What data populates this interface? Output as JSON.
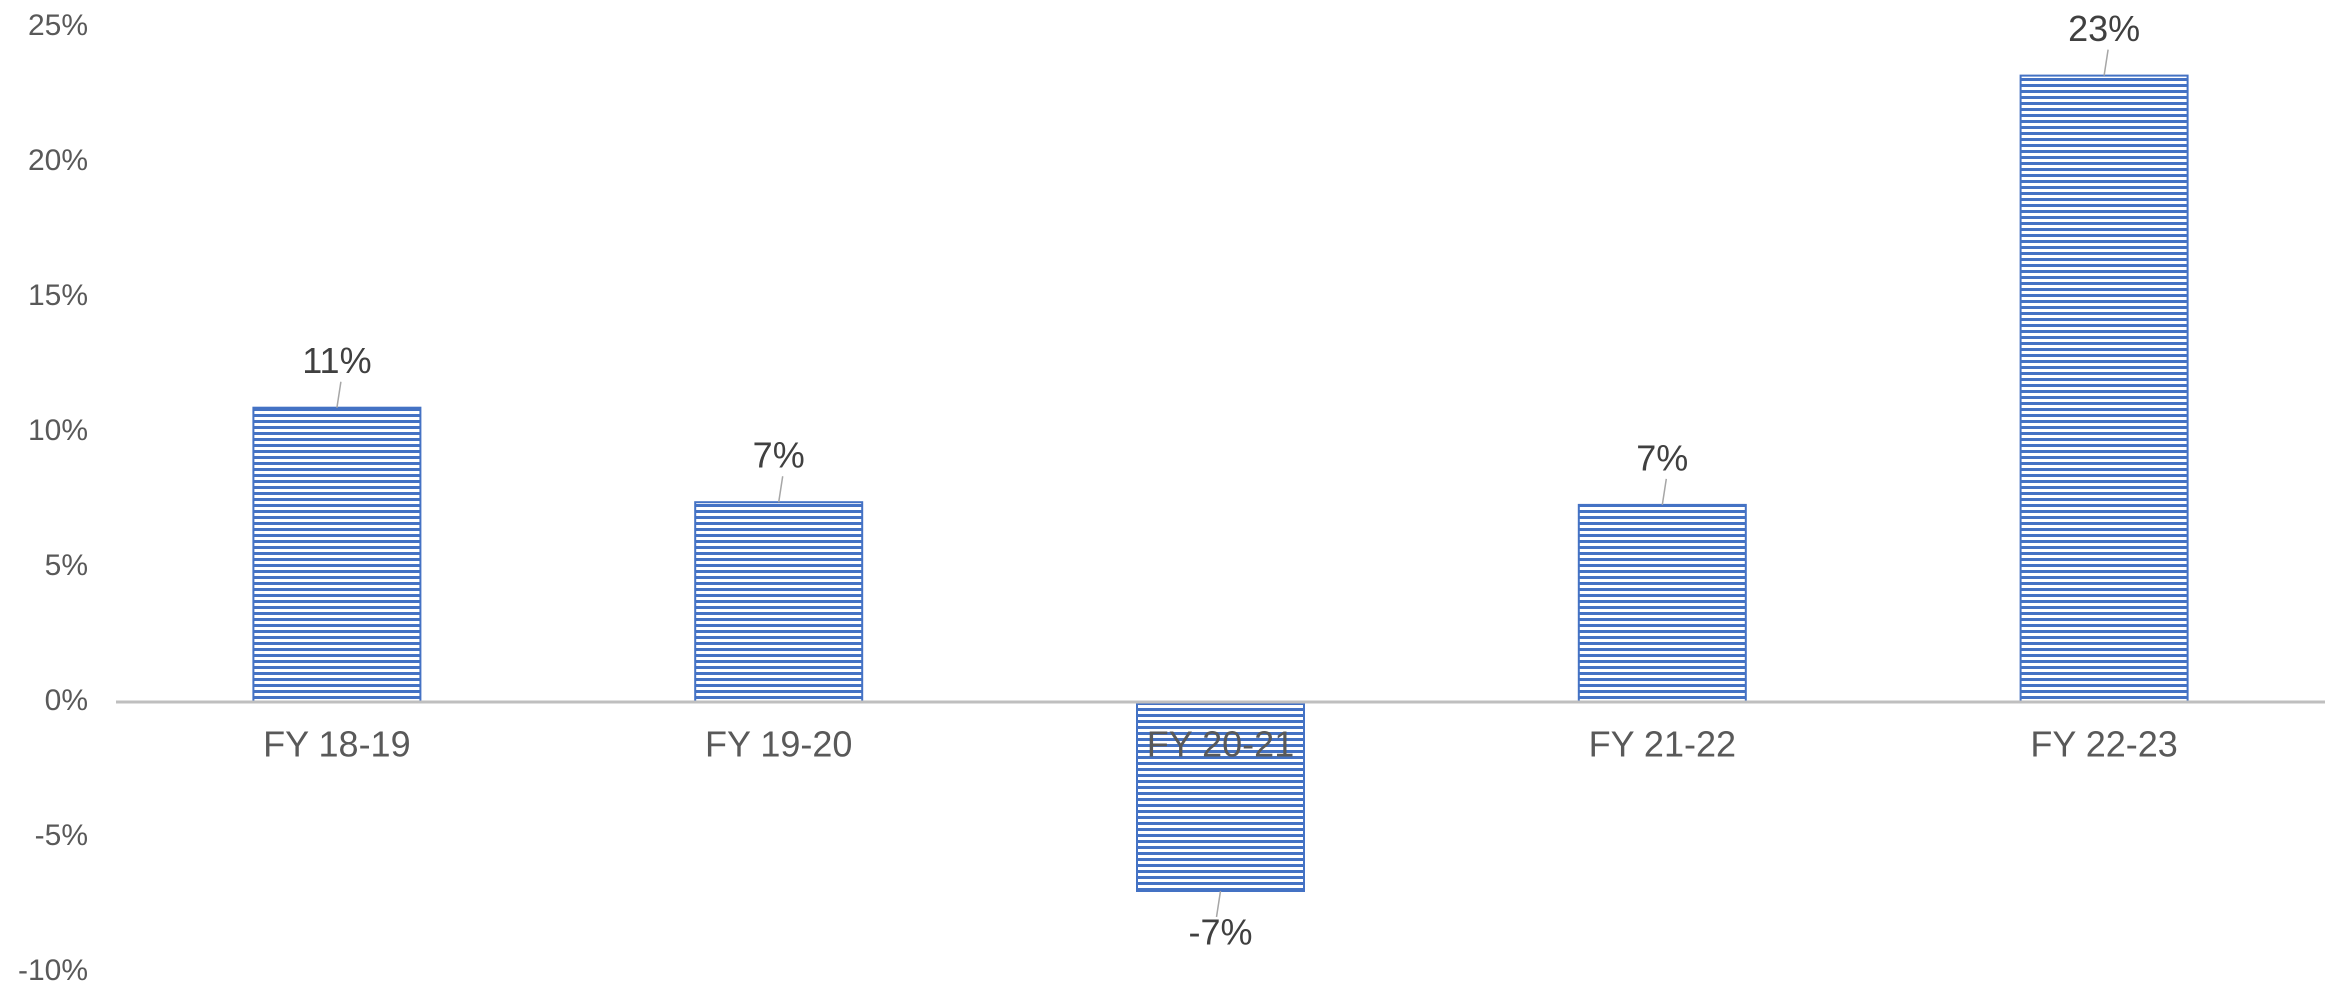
{
  "chart_data": {
    "type": "bar",
    "categories": [
      "FY 18-19",
      "FY 19-20",
      "FY 20-21",
      "FY 21-22",
      "FY 22-23"
    ],
    "values": [
      10.9,
      7.4,
      -7.0,
      7.3,
      23.2
    ],
    "value_labels": [
      "11%",
      "7%",
      "-7%",
      "7%",
      "23%"
    ],
    "color": "#4472c4",
    "ylim": [
      -10,
      25
    ],
    "yticks": [
      {
        "value": -10,
        "label": "-10%"
      },
      {
        "value": -5,
        "label": "-5%"
      },
      {
        "value": 0,
        "label": "0%"
      },
      {
        "value": 5,
        "label": "5%"
      },
      {
        "value": 10,
        "label": "10%"
      },
      {
        "value": 15,
        "label": "15%"
      },
      {
        "value": 20,
        "label": "20%"
      },
      {
        "value": 25,
        "label": "25%"
      }
    ],
    "grid": false
  }
}
